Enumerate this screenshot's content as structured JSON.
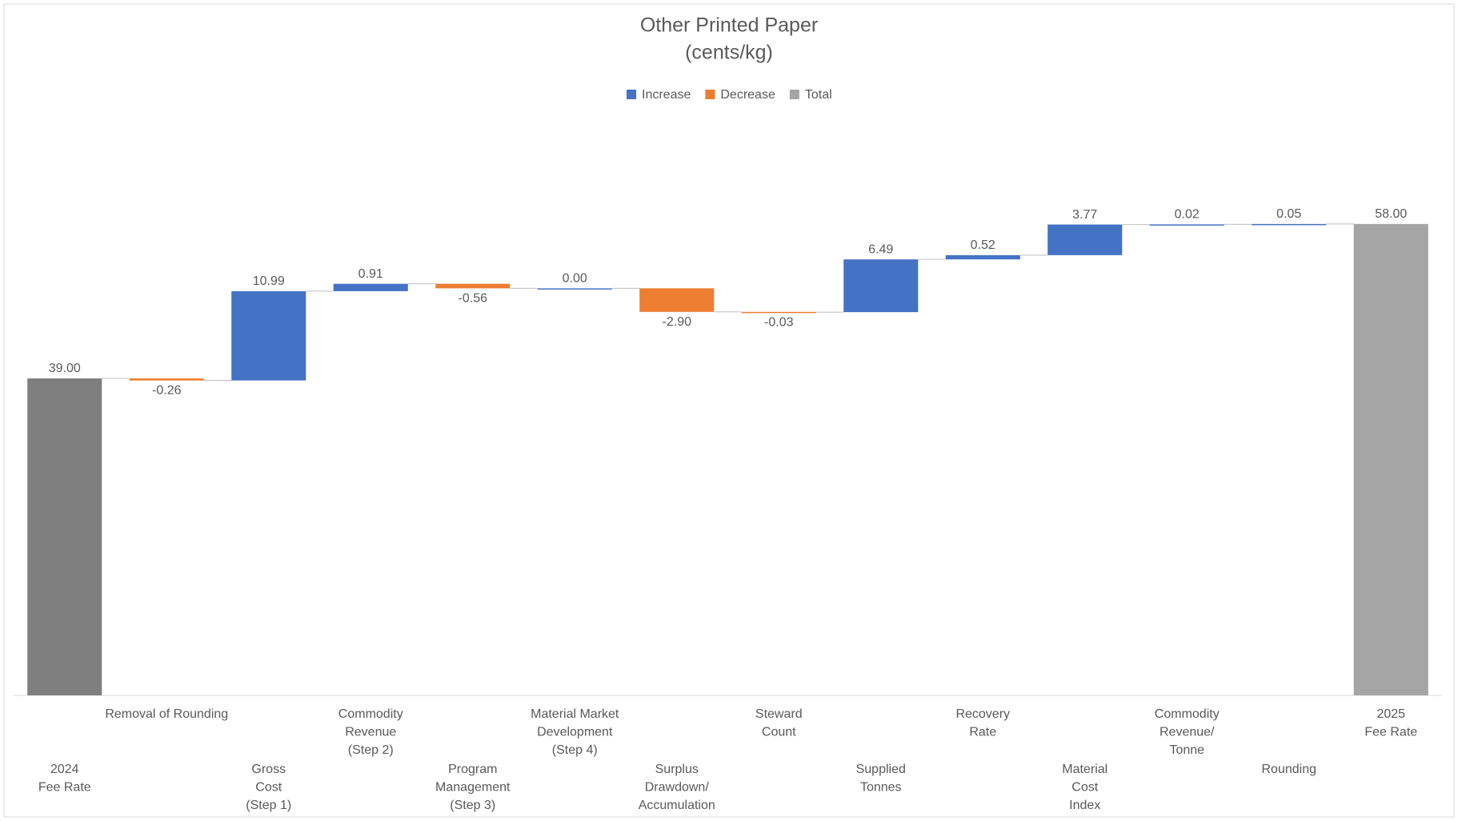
{
  "chart_data": {
    "type": "waterfall",
    "title": [
      "Other Printed Paper",
      "(cents/kg)"
    ],
    "legend": [
      {
        "name": "Increase",
        "color": "#4472c4"
      },
      {
        "name": "Decrease",
        "color": "#ed7d31"
      },
      {
        "name": "Total",
        "color": "#a5a5a5"
      }
    ],
    "categories": [
      [
        "2024",
        "Fee Rate"
      ],
      [
        "Removal of Rounding"
      ],
      [
        "Gross",
        "Cost",
        "(Step 1)"
      ],
      [
        "Commodity",
        "Revenue",
        "(Step 2)"
      ],
      [
        "Program",
        "Management",
        "(Step 3)"
      ],
      [
        "Material Market",
        "Development",
        "(Step 4)"
      ],
      [
        "Surplus",
        "Drawdown/",
        "Accumulation"
      ],
      [
        "Steward",
        "Count"
      ],
      [
        "Supplied",
        "Tonnes"
      ],
      [
        "Recovery",
        "Rate"
      ],
      [
        "Material",
        "Cost",
        "Index"
      ],
      [
        "Commodity",
        "Revenue/",
        "Tonne"
      ],
      [
        "Rounding"
      ],
      [
        "2025",
        "Fee Rate"
      ]
    ],
    "values": [
      39,
      -0.26,
      10.99,
      0.91,
      -0.56,
      0,
      -2.9,
      -0.03,
      6.49,
      0.52,
      3.77,
      0.02,
      0.05,
      58
    ],
    "value_labels": [
      "39.00",
      "-0.26",
      "10.99",
      "0.91",
      "-0.56",
      "0.00",
      "-2.90",
      "-0.03",
      "6.49",
      "0.52",
      "3.77",
      "0.02",
      "0.05",
      "58.00"
    ],
    "totals": [
      0,
      13
    ],
    "colors": [
      "#7f7f7f",
      "#ed7d31",
      "#4472c4",
      "#4472c4",
      "#ed7d31",
      "#4472c4",
      "#ed7d31",
      "#ed7d31",
      "#4472c4",
      "#4472c4",
      "#4472c4",
      "#4472c4",
      "#4472c4",
      "#a5a5a5"
    ],
    "ylim": [
      0,
      70
    ]
  }
}
